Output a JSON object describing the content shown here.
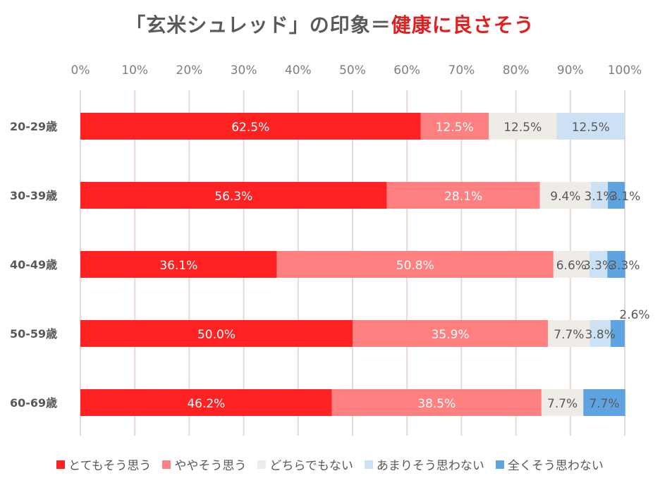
{
  "title": {
    "prefix": "「玄米シュレッド」の印象＝",
    "highlight": "健康に良さそう"
  },
  "colors": {
    "title_text": "#5a5a5a",
    "title_accent": "#e02020",
    "gridline": "#e6d8d4",
    "axis_text": "#7f7f7f",
    "label_text": "#595959"
  },
  "chart_data": {
    "type": "bar",
    "orientation": "horizontal",
    "stacked": "percent",
    "title": "「玄米シュレッド」の印象＝健康に良さそう",
    "xlabel": "",
    "ylabel": "",
    "xlim": [
      0,
      100
    ],
    "xticks": [
      "0%",
      "10%",
      "20%",
      "30%",
      "40%",
      "50%",
      "60%",
      "70%",
      "80%",
      "90%",
      "100%"
    ],
    "categories": [
      "20-29歳",
      "30-39歳",
      "40-49歳",
      "50-59歳",
      "60-69歳"
    ],
    "grid": true,
    "legend_position": "bottom",
    "series": [
      {
        "name": "とてもそう思う",
        "color": "#fe2222",
        "label_color": "#ffffff",
        "values": [
          62.5,
          56.3,
          36.1,
          50.0,
          46.2
        ],
        "labels": [
          "62.5%",
          "56.3%",
          "36.1%",
          "50.0%",
          "46.2%"
        ]
      },
      {
        "name": "ややそう思う",
        "color": "#ff8080",
        "label_color": "#ffffff",
        "values": [
          12.5,
          28.1,
          50.8,
          35.9,
          38.5
        ],
        "labels": [
          "12.5%",
          "28.1%",
          "50.8%",
          "35.9%",
          "38.5%"
        ]
      },
      {
        "name": "どちらでもない",
        "color": "#efebe6",
        "label_color": "#595959",
        "values": [
          12.5,
          9.4,
          6.6,
          7.7,
          7.7
        ],
        "labels": [
          "12.5%",
          "9.4%",
          "6.6%",
          "7.7%",
          "7.7%"
        ]
      },
      {
        "name": "あまりそう思わない",
        "color": "#cde1f5",
        "label_color": "#595959",
        "values": [
          12.5,
          3.1,
          3.3,
          3.8,
          0
        ],
        "labels": [
          "12.5%",
          "3.1%",
          "3.3%",
          "3.8%",
          ""
        ]
      },
      {
        "name": "全くそう思わない",
        "color": "#5ea4e1",
        "label_color": "#595959",
        "values": [
          0,
          3.1,
          3.3,
          2.6,
          7.7
        ],
        "labels": [
          "",
          "3.1%",
          "3.3%",
          "2.6%",
          "7.7%"
        ]
      }
    ]
  }
}
